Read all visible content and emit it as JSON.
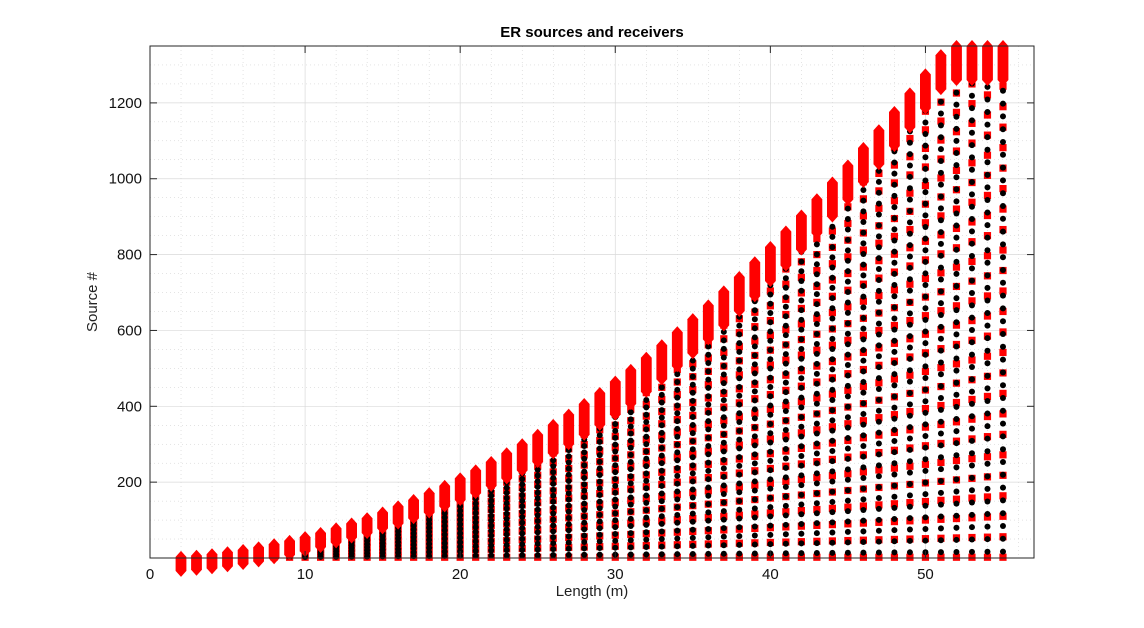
{
  "chart_data": {
    "type": "scatter",
    "title": "ER sources and receivers",
    "xlabel": "Length (m)",
    "ylabel": "Source #",
    "xlim": [
      0,
      57
    ],
    "ylim": [
      0,
      1350
    ],
    "xticks": [
      0,
      10,
      20,
      30,
      40,
      50
    ],
    "yticks": [
      200,
      400,
      600,
      800,
      1000,
      1200
    ],
    "grid": "on",
    "minor_grid": "on",
    "x_range": [
      2,
      55
    ],
    "boundary_formula": "source_count(n) = n*(n-1)/2 for n = x + 1, capped at 1350",
    "colors": {
      "sources": "#ff0000",
      "receivers": "#000000",
      "grid": "#d9d9d9",
      "frame": "#262626"
    },
    "series": [
      {
        "marker": "red-diamond",
        "color": "#ff0000"
      },
      {
        "marker": "red-square",
        "color": "#ff0000"
      },
      {
        "marker": "black-dot",
        "color": "#000000"
      }
    ]
  }
}
